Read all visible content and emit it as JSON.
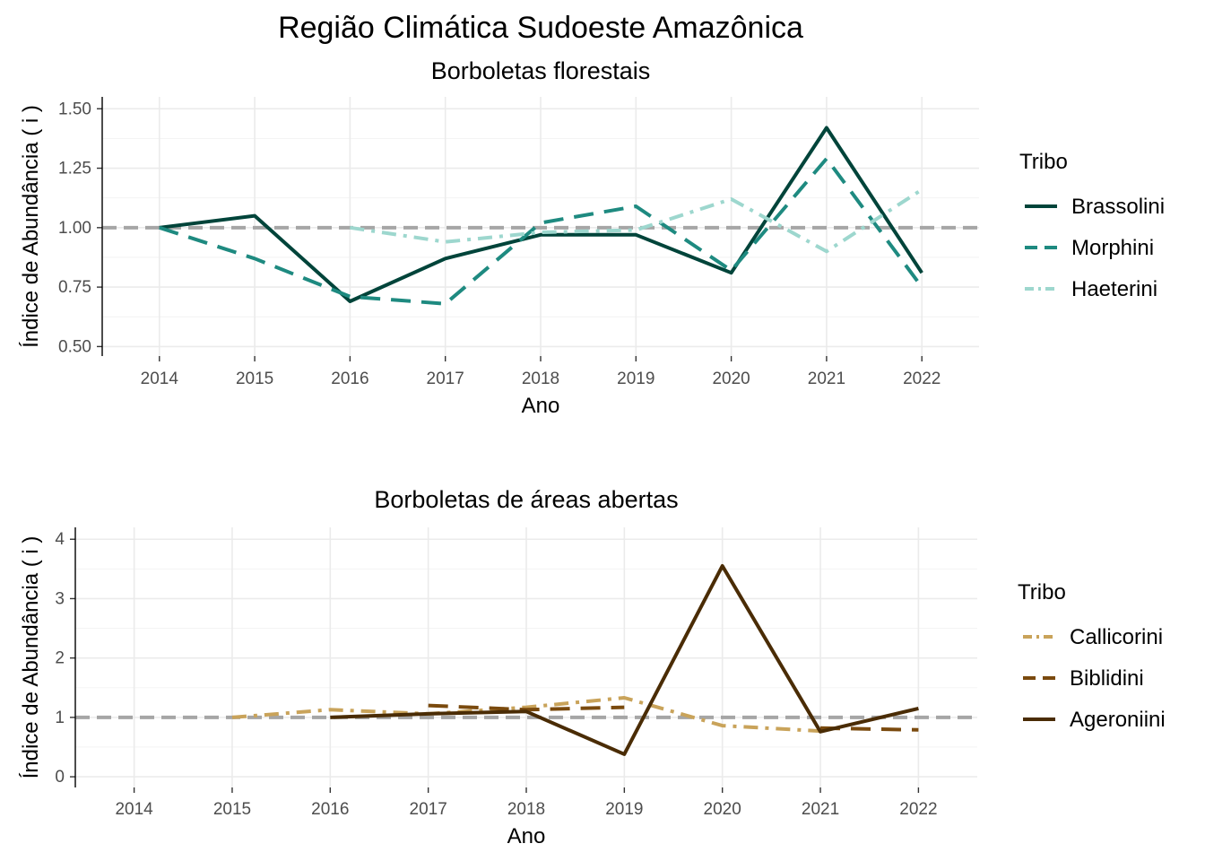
{
  "title": "Região Climática Sudoeste Amazônica",
  "chart_data": [
    {
      "type": "line",
      "title": "Borboletas florestais",
      "xlabel": "Ano",
      "ylabel": "Índice de Abundância ( i )",
      "x": [
        2014,
        2015,
        2016,
        2017,
        2018,
        2019,
        2020,
        2021,
        2022
      ],
      "ylim": [
        0.46,
        1.55
      ],
      "yticks": [
        0.5,
        0.75,
        1.0,
        1.25,
        1.5
      ],
      "ytick_labels": [
        "0.50",
        "0.75",
        "1.00",
        "1.25",
        "1.50"
      ],
      "reference_line": 1.0,
      "grid": true,
      "legend_title": "Tribo",
      "legend_position": "right",
      "series": [
        {
          "name": "Brassolini",
          "color": "#00443a",
          "dash": "solid",
          "values": [
            1.0,
            1.05,
            0.69,
            0.87,
            0.97,
            0.97,
            0.81,
            1.42,
            0.81
          ]
        },
        {
          "name": "Morphini",
          "color": "#1e8a80",
          "dash": "dashed",
          "values": [
            1.0,
            0.87,
            0.71,
            0.68,
            1.02,
            1.09,
            0.82,
            1.29,
            0.75
          ]
        },
        {
          "name": "Haeterini",
          "color": "#9dd7ce",
          "dash": "dashdot",
          "values": [
            null,
            null,
            1.0,
            0.94,
            0.98,
            0.99,
            1.12,
            0.9,
            1.16
          ]
        }
      ]
    },
    {
      "type": "line",
      "title": "Borboletas de áreas abertas",
      "xlabel": "Ano",
      "ylabel": "Índice de Abundância ( i )",
      "x": [
        2014,
        2015,
        2016,
        2017,
        2018,
        2019,
        2020,
        2021,
        2022
      ],
      "ylim": [
        -0.18,
        4.2
      ],
      "yticks": [
        0,
        1,
        2,
        3,
        4
      ],
      "ytick_labels": [
        "0",
        "1",
        "2",
        "3",
        "4"
      ],
      "reference_line": 1.0,
      "grid": true,
      "legend_title": "Tribo",
      "legend_position": "right",
      "series": [
        {
          "name": "Callicorini",
          "color": "#c9a35a",
          "dash": "dashdot",
          "values": [
            null,
            1.0,
            1.13,
            1.06,
            1.17,
            1.33,
            0.86,
            0.77,
            null
          ]
        },
        {
          "name": "Biblidini",
          "color": "#7a4a0e",
          "dash": "dashed",
          "values": [
            null,
            null,
            null,
            1.2,
            1.13,
            1.17,
            null,
            0.82,
            0.79
          ]
        },
        {
          "name": "Ageroniini",
          "color": "#4a2c05",
          "dash": "solid",
          "values": [
            null,
            null,
            1.0,
            1.06,
            1.1,
            0.38,
            3.55,
            0.76,
            1.15
          ]
        }
      ]
    }
  ]
}
